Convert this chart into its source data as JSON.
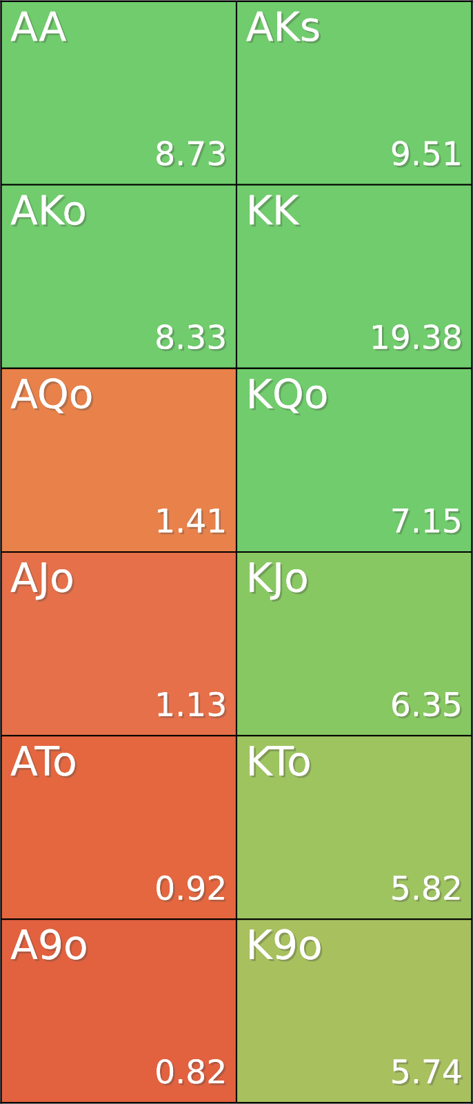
{
  "chart_data": {
    "type": "heatmap",
    "categories": [
      null,
      null
    ],
    "y_categories": [
      null,
      null,
      null,
      null,
      null,
      null
    ],
    "cells": [
      [
        8.73,
        9.51
      ],
      [
        8.33,
        19.38
      ],
      [
        1.41,
        7.15
      ],
      [
        1.13,
        6.35
      ],
      [
        0.92,
        5.82
      ],
      [
        0.82,
        5.74
      ]
    ],
    "annotations": [
      "AA",
      "AKs",
      "AKo",
      "KK",
      "AQo",
      "KQo",
      "AJo",
      "KJo",
      "ATo",
      "KTo",
      "A9o",
      "K9o"
    ],
    "colors": [
      [
        "#70cc6c",
        "#70cc6c"
      ],
      [
        "#70cc6c",
        "#70cc6c"
      ],
      [
        "#e8814a",
        "#70cc6c"
      ],
      [
        "#e5704a",
        "#88c862"
      ],
      [
        "#e4673f",
        "#9ec460"
      ],
      [
        "#e2613f",
        "#a8c05e"
      ]
    ],
    "data_labels": true
  }
}
